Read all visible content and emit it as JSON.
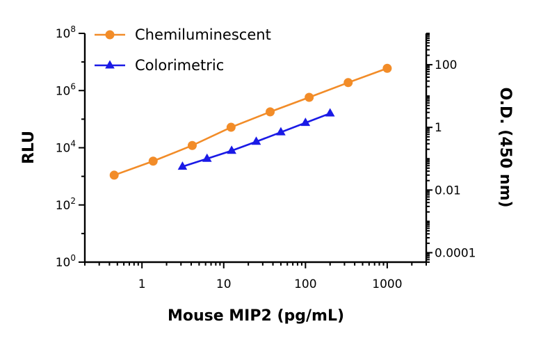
{
  "chart_data": {
    "type": "line",
    "xlabel": "Mouse MIP2 (pg/mL)",
    "ylabel": "RLU",
    "y2label": "O.D. (450 nm)",
    "x_scale": "log",
    "y_scale": "log",
    "y2_scale": "log",
    "xlim": [
      0.2,
      3000
    ],
    "ylim": [
      1,
      100000000
    ],
    "y2lim": [
      5e-05,
      1000
    ],
    "x_ticks": [
      {
        "value": 1,
        "label": "1"
      },
      {
        "value": 10,
        "label": "10"
      },
      {
        "value": 100,
        "label": "100"
      },
      {
        "value": 1000,
        "label": "1000"
      }
    ],
    "y_ticks": [
      {
        "exp": 0,
        "base": "10",
        "sup": "0"
      },
      {
        "exp": 2,
        "base": "10",
        "sup": "2"
      },
      {
        "exp": 4,
        "base": "10",
        "sup": "4"
      },
      {
        "exp": 6,
        "base": "10",
        "sup": "6"
      },
      {
        "exp": 8,
        "base": "10",
        "sup": "8"
      }
    ],
    "y2_ticks": [
      {
        "value": 0.0001,
        "label": "0.0001"
      },
      {
        "value": 0.01,
        "label": "0.01"
      },
      {
        "value": 1,
        "label": "1"
      },
      {
        "value": 100,
        "label": "100"
      }
    ],
    "legend_position": "top-left",
    "grid": false,
    "series": [
      {
        "name": "Chemiluminescent",
        "axis": "left",
        "color": "#F28C28",
        "marker": "circle",
        "x": [
          0.457,
          1.37,
          4.12,
          12.3,
          37.0,
          111,
          333,
          1000
        ],
        "y": [
          1100,
          3400,
          12000,
          52000,
          180000,
          580000,
          1900000,
          6000000
        ]
      },
      {
        "name": "Colorimetric",
        "axis": "right",
        "color": "#1A1AE6",
        "marker": "triangle",
        "x": [
          3.13,
          6.25,
          12.5,
          25,
          50,
          100,
          200
        ],
        "y": [
          0.056,
          0.1,
          0.18,
          0.35,
          0.7,
          1.4,
          2.8
        ]
      }
    ]
  }
}
